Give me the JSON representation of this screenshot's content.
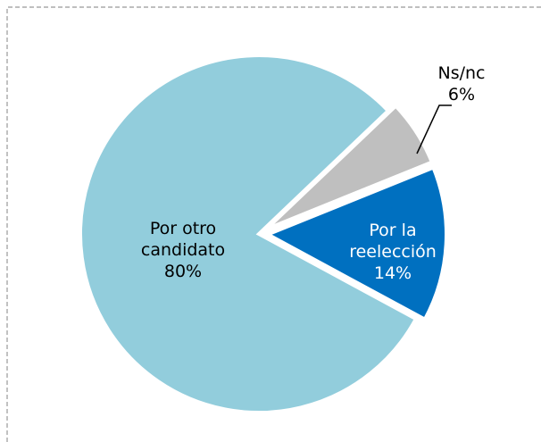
{
  "chart_data": {
    "type": "pie",
    "categories": [
      "Por la reelección",
      "Por otro candidato",
      "Ns/nc"
    ],
    "values": [
      14,
      80,
      6
    ],
    "value_labels": [
      "14%",
      "80%",
      "6%"
    ],
    "colors": [
      "#0070c0",
      "#92cddc",
      "#bfbfbf"
    ]
  }
}
